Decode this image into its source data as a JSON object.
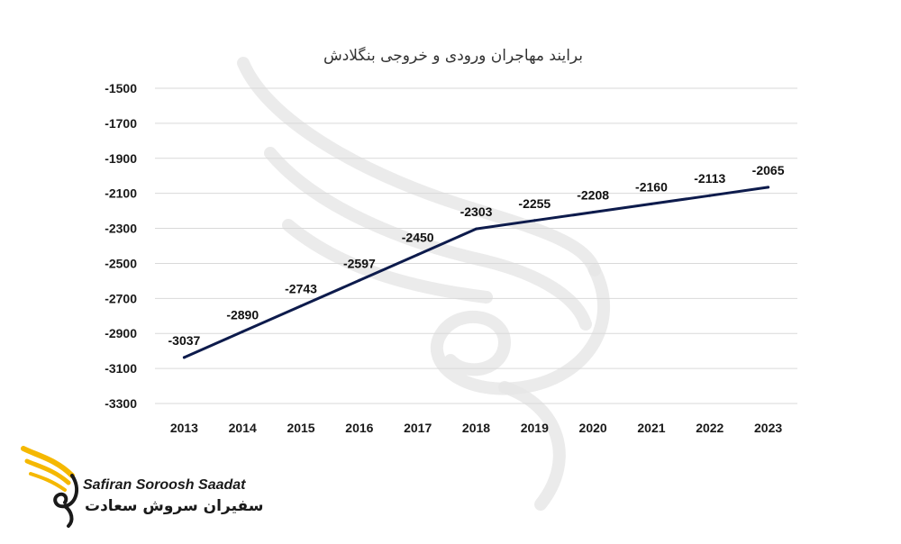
{
  "chart_data": {
    "type": "line",
    "title": "برایند مهاجران ورودی و خروجی بنگلادش",
    "categories": [
      "2013",
      "2014",
      "2015",
      "2016",
      "2017",
      "2018",
      "2019",
      "2020",
      "2021",
      "2022",
      "2023"
    ],
    "series": [
      {
        "values": [
          -3037,
          -2890,
          -2743,
          -2597,
          -2450,
          -2303,
          -2255,
          -2208,
          -2160,
          -2113,
          -2065
        ]
      }
    ],
    "data_labels": [
      "-3037",
      "-2890",
      "-2743",
      "-2597",
      "-2450",
      "-2303",
      "-2255",
      "-2208",
      "-2160",
      "-2113",
      "-2065"
    ],
    "y_ticks": [
      "-1500",
      "-1700",
      "-1900",
      "-2100",
      "-2300",
      "-2500",
      "-2700",
      "-2900",
      "-3100",
      "-3300"
    ],
    "ylim": [
      -3300,
      -1500
    ],
    "y_tick_values": [
      -1500,
      -1700,
      -1900,
      -2100,
      -2300,
      -2500,
      -2700,
      -2900,
      -3100,
      -3300
    ],
    "grid": true,
    "legend": "none",
    "line_color": "#0d1b4c"
  },
  "brand": {
    "name_en": "Safiran Soroosh Saadat",
    "name_fa": "سفیران سروش سعادت",
    "logo_color": "#f5b800"
  }
}
